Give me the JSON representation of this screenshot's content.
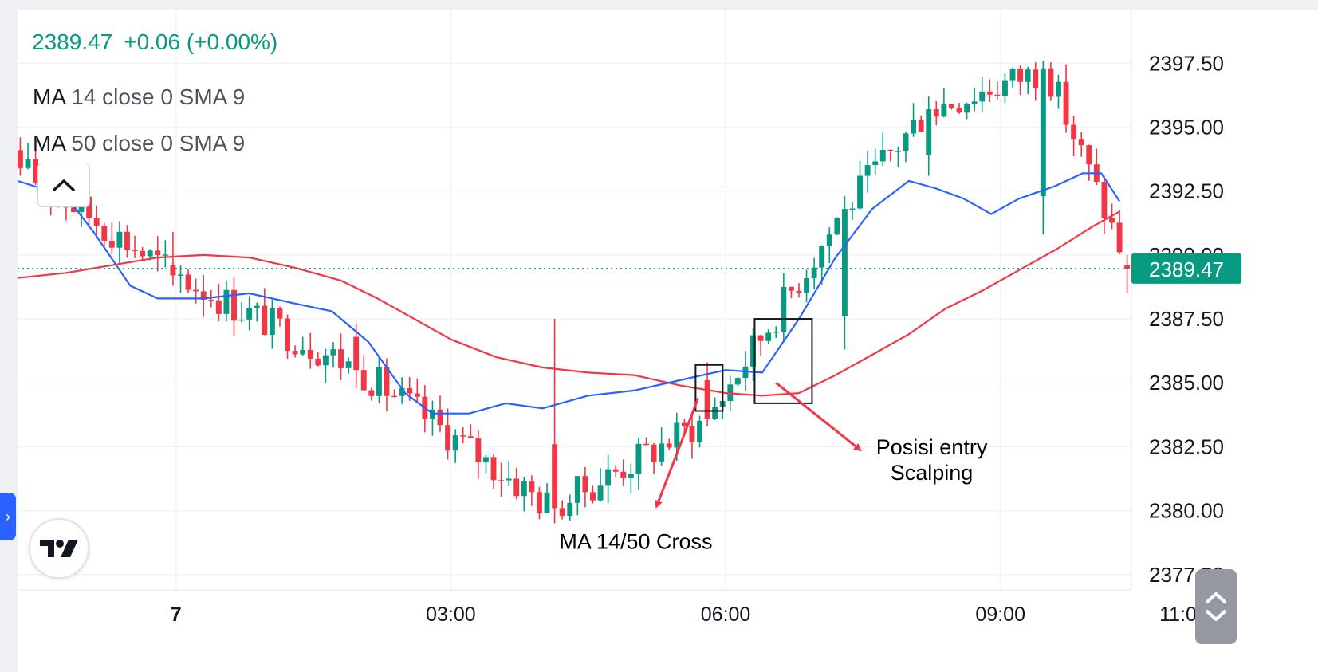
{
  "header": {
    "last_price": "2389.47",
    "change": "+0.06 (+0.00%)"
  },
  "indicators": [
    {
      "name": "MA",
      "params": "14 close 0 SMA 9",
      "color": "#2962ff"
    },
    {
      "name": "MA",
      "params": "50 close 0 SMA 9",
      "color": "#f23645"
    }
  ],
  "icons": {
    "collapse": "chevron-up-icon",
    "logo": "tradingview-logo",
    "sidebar": "chevron-right-icon",
    "scroll": "up-down-chevrons-icon"
  },
  "colors": {
    "up": "#089981",
    "down": "#f23645",
    "ma14": "#2962ff",
    "ma50": "#f23645",
    "price_label": "#089981",
    "annotation_arrow": "#f23645"
  },
  "chart_data": {
    "type": "candlestick",
    "symbol_price_label": "2389.47",
    "current_price": 2389.47,
    "y_ticks": [
      "2397.50",
      "2395.00",
      "2392.50",
      "2390.00",
      "2387.50",
      "2385.00",
      "2382.50",
      "2380.00",
      "2377.50"
    ],
    "y_tick_values": [
      2397.5,
      2395,
      2392.5,
      2390,
      2387.5,
      2385,
      2382.5,
      2380,
      2377.5
    ],
    "ylim": [
      2376.9,
      2399.6
    ],
    "x_ticks": [
      {
        "label": "7",
        "hour": 0,
        "bold": true
      },
      {
        "label": "03:00",
        "hour": 3
      },
      {
        "label": "06:00",
        "hour": 6
      },
      {
        "label": "09:00",
        "hour": 9
      },
      {
        "label": "11:00",
        "hour": 11
      }
    ],
    "xlim_hours": [
      -1.73,
      10.43
    ],
    "candle_interval_minutes": 5,
    "grid": true,
    "annotations": [
      {
        "text": "MA 14/50 Cross"
      },
      {
        "text_lines": [
          "Posisi entry",
          "Scalping"
        ]
      }
    ],
    "ma14": {
      "name": "MA 14 close 0 SMA 9",
      "x_hours": [
        -1.73,
        -1.2,
        -0.9,
        -0.5,
        -0.2,
        0.3,
        0.8,
        1.3,
        1.7,
        2.1,
        2.5,
        2.8,
        3.2,
        3.6,
        4.0,
        4.5,
        5.0,
        5.5,
        6.0,
        6.4,
        6.8,
        7.2,
        7.6,
        8.0,
        8.3,
        8.6,
        8.9,
        9.2,
        9.6,
        9.9,
        10.1,
        10.3
      ],
      "values": [
        2392.9,
        2392.3,
        2390.9,
        2388.8,
        2388.3,
        2388.3,
        2388.5,
        2388.1,
        2387.8,
        2386.6,
        2384.6,
        2383.8,
        2383.8,
        2384.2,
        2384.0,
        2384.5,
        2384.7,
        2385.1,
        2385.5,
        2385.4,
        2387.5,
        2389.9,
        2391.8,
        2392.9,
        2392.6,
        2392.2,
        2391.6,
        2392.2,
        2392.7,
        2393.2,
        2393.2,
        2392.1
      ]
    },
    "ma50": {
      "name": "MA 50 close 0 SMA 9",
      "x_hours": [
        -1.73,
        -1.2,
        -0.7,
        -0.2,
        0.3,
        0.8,
        1.3,
        1.8,
        2.2,
        2.6,
        3.0,
        3.5,
        4.0,
        4.5,
        5.0,
        5.5,
        6.0,
        6.4,
        6.8,
        7.2,
        7.6,
        8.0,
        8.4,
        8.8,
        9.2,
        9.6,
        10.0,
        10.3
      ],
      "values": [
        2389.1,
        2389.3,
        2389.6,
        2389.9,
        2390.0,
        2389.9,
        2389.5,
        2389.0,
        2388.3,
        2387.5,
        2386.7,
        2386.0,
        2385.6,
        2385.4,
        2385.3,
        2384.9,
        2384.6,
        2384.5,
        2384.6,
        2385.3,
        2386.1,
        2386.9,
        2387.9,
        2388.6,
        2389.4,
        2390.2,
        2391.1,
        2391.7
      ]
    },
    "candles_sample": [
      {
        "t": -1.7,
        "o": 2394.1,
        "h": 2394.6,
        "l": 2393.1,
        "c": 2393.4
      },
      {
        "t": 0.0,
        "o": 2389.6,
        "h": 2390.9,
        "l": 2388.8,
        "c": 2389.2
      },
      {
        "t": 2.0,
        "o": 2386.8,
        "h": 2387.3,
        "l": 2384.8,
        "c": 2385.5
      },
      {
        "t": 4.1,
        "o": 2382.6,
        "h": 2387.5,
        "l": 2379.5,
        "c": 2380.1
      },
      {
        "t": 5.8,
        "o": 2385.1,
        "h": 2385.8,
        "l": 2383.3,
        "c": 2383.6
      },
      {
        "t": 7.3,
        "o": 2387.6,
        "h": 2392.3,
        "l": 2386.3,
        "c": 2391.8
      },
      {
        "t": 8.2,
        "o": 2393.9,
        "h": 2396.2,
        "l": 2393.1,
        "c": 2395.7
      },
      {
        "t": 9.5,
        "o": 2392.3,
        "h": 2397.6,
        "l": 2390.8,
        "c": 2397.3
      },
      {
        "t": 10.4,
        "o": 2389.6,
        "h": 2390.0,
        "l": 2388.5,
        "c": 2389.47
      }
    ]
  }
}
